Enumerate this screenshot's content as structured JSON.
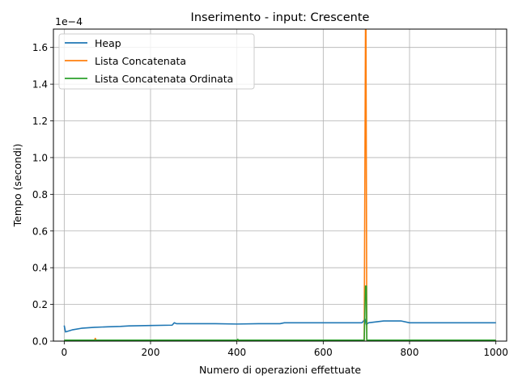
{
  "chart_data": {
    "type": "line",
    "title": "Inserimento - input: Crescente",
    "xlabel": "Numero di operazioni effettuate",
    "ylabel": "Tempo (secondi)",
    "y_scale_label": "1e−4",
    "xlim": [
      -25,
      1025
    ],
    "ylim": [
      0,
      1.7
    ],
    "x_ticks": [
      0,
      200,
      400,
      600,
      800,
      1000
    ],
    "x_tick_labels": [
      "0",
      "200",
      "400",
      "600",
      "800",
      "1000"
    ],
    "y_ticks": [
      0,
      0.2,
      0.4,
      0.6,
      0.8,
      1.0,
      1.2,
      1.4,
      1.6
    ],
    "y_tick_labels": [
      "0.0",
      "0.2",
      "0.4",
      "0.6",
      "0.8",
      "1.0",
      "1.2",
      "1.4",
      "1.6"
    ],
    "grid": true,
    "legend_position": "top-left",
    "series": [
      {
        "name": "Heap",
        "color": "#1f77b4",
        "points": [
          [
            0,
            0.085
          ],
          [
            3,
            0.05
          ],
          [
            10,
            0.055
          ],
          [
            20,
            0.062
          ],
          [
            40,
            0.07
          ],
          [
            70,
            0.075
          ],
          [
            100,
            0.078
          ],
          [
            130,
            0.08
          ],
          [
            150,
            0.083
          ],
          [
            200,
            0.085
          ],
          [
            250,
            0.087
          ],
          [
            255,
            0.1
          ],
          [
            260,
            0.095
          ],
          [
            300,
            0.095
          ],
          [
            350,
            0.095
          ],
          [
            400,
            0.093
          ],
          [
            450,
            0.095
          ],
          [
            500,
            0.095
          ],
          [
            510,
            0.1
          ],
          [
            550,
            0.1
          ],
          [
            600,
            0.1
          ],
          [
            650,
            0.1
          ],
          [
            690,
            0.1
          ],
          [
            697,
            0.12
          ],
          [
            700,
            0.09
          ],
          [
            705,
            0.1
          ],
          [
            740,
            0.11
          ],
          [
            780,
            0.11
          ],
          [
            800,
            0.1
          ],
          [
            850,
            0.1
          ],
          [
            900,
            0.1
          ],
          [
            950,
            0.1
          ],
          [
            1000,
            0.1
          ]
        ]
      },
      {
        "name": "Lista Concatenata",
        "color": "#ff7f0e",
        "points": [
          [
            0,
            0.004
          ],
          [
            70,
            0.004
          ],
          [
            72,
            0.015
          ],
          [
            74,
            0.004
          ],
          [
            695,
            0.004
          ],
          [
            698,
            1.75
          ],
          [
            699,
            1.75
          ],
          [
            701,
            0.004
          ],
          [
            1000,
            0.004
          ]
        ]
      },
      {
        "name": "Lista Concatenata Ordinata",
        "color": "#2ca02c",
        "points": [
          [
            0,
            0.005
          ],
          [
            400,
            0.005
          ],
          [
            402,
            0.01
          ],
          [
            404,
            0.005
          ],
          [
            695,
            0.005
          ],
          [
            698,
            0.3
          ],
          [
            700,
            0.3
          ],
          [
            701,
            0.005
          ],
          [
            1000,
            0.005
          ]
        ]
      }
    ]
  }
}
